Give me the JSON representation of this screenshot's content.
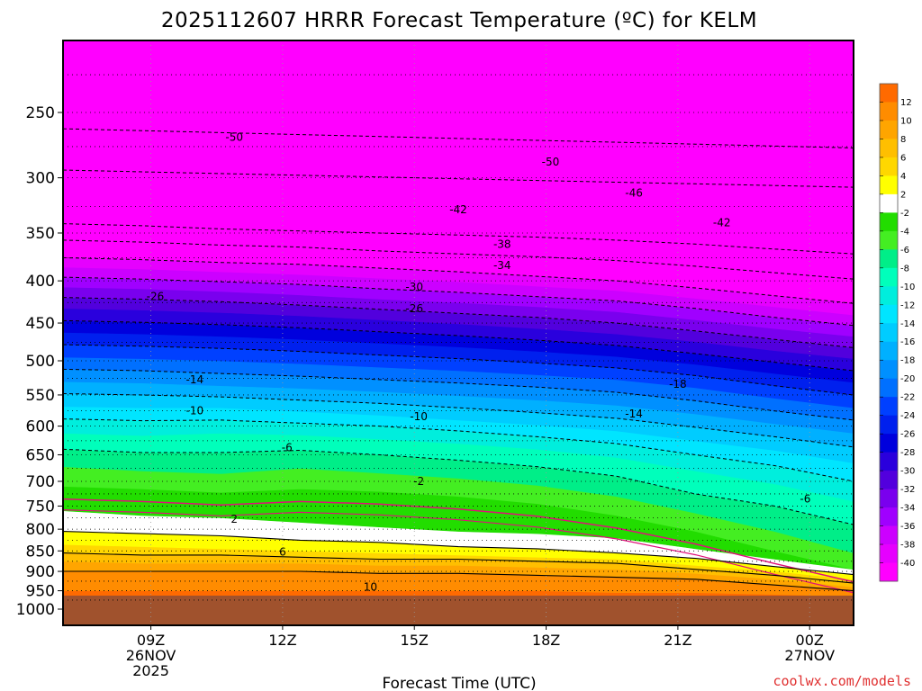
{
  "chart_data": {
    "type": "contour",
    "title": "2025112607 HRRR Forecast Temperature (ºC) for KELM",
    "xlabel": "Forecast Time (UTC)",
    "ylabel": "",
    "credit": "coolwx.com/models",
    "x_ticks": [
      {
        "hour": 9,
        "lines": [
          "09Z",
          "26NOV",
          "2025"
        ]
      },
      {
        "hour": 12,
        "lines": [
          "12Z"
        ]
      },
      {
        "hour": 15,
        "lines": [
          "15Z"
        ]
      },
      {
        "hour": 18,
        "lines": [
          "18Z"
        ]
      },
      {
        "hour": 21,
        "lines": [
          "21Z"
        ]
      },
      {
        "hour": 24,
        "lines": [
          "00Z",
          "27NOV"
        ]
      }
    ],
    "xlim": [
      7,
      25
    ],
    "y_scale": "log",
    "ylim": [
      1050,
      200
    ],
    "y_ticks": [
      250,
      300,
      350,
      400,
      450,
      500,
      550,
      600,
      650,
      700,
      750,
      800,
      850,
      900,
      950,
      1000
    ],
    "dotted_levels": [
      225,
      250,
      275,
      300,
      325,
      350,
      375,
      400,
      425,
      450,
      475,
      500,
      525,
      550,
      575,
      600,
      625,
      650,
      675,
      700,
      725,
      750,
      775,
      800,
      825,
      850,
      875,
      900,
      925,
      950,
      975
    ],
    "surface_pressure": 966,
    "colorbar": {
      "labels": [
        "12",
        "10",
        "8",
        "6",
        "4",
        "2",
        "-2",
        "-4",
        "-6",
        "-8",
        "-10",
        "-12",
        "-14",
        "-16",
        "-18",
        "-20",
        "-22",
        "-24",
        "-26",
        "-28",
        "-30",
        "-32",
        "-34",
        "-36",
        "-38",
        "-40"
      ],
      "colors": [
        "#ff6a00",
        "#ff8c00",
        "#ffa500",
        "#ffbf00",
        "#ffd700",
        "#ffff00",
        "#ffffff",
        "#22dd00",
        "#44ee22",
        "#00ee88",
        "#00ffbb",
        "#00eedd",
        "#00e5ff",
        "#00ccff",
        "#00b0ff",
        "#0090ff",
        "#0070ff",
        "#0040ff",
        "#0020ee",
        "#0000dd",
        "#2a00dd",
        "#5200dd",
        "#7a00ee",
        "#a000ff",
        "#cc00ff",
        "#e600ff",
        "#ff00ff"
      ]
    },
    "shading_levels": [
      [
        1000,
        950,
        900,
        875,
        855,
        835,
        805,
        760
      ],
      [
        1000,
        950,
        900,
        880,
        860,
        840,
        810,
        770
      ],
      [
        1000,
        950,
        900,
        880,
        860,
        845,
        815,
        775
      ],
      [
        1000,
        950,
        900,
        880,
        865,
        850,
        825,
        785
      ],
      [
        1000,
        950,
        905,
        885,
        870,
        855,
        830,
        795
      ],
      [
        1000,
        950,
        905,
        885,
        870,
        860,
        840,
        805
      ],
      [
        1000,
        950,
        910,
        890,
        875,
        865,
        845,
        810
      ],
      [
        1000,
        955,
        915,
        895,
        880,
        870,
        855,
        820
      ],
      [
        1000,
        955,
        920,
        905,
        895,
        885,
        868,
        845
      ],
      [
        1000,
        960,
        935,
        920,
        910,
        900,
        888,
        870
      ],
      [
        1000,
        965,
        950,
        940,
        930,
        920,
        908,
        895
      ]
    ],
    "cold_levels": [
      [
        710,
        672,
        640,
        612,
        588,
        568,
        548,
        530,
        512,
        495,
        478,
        462,
        447,
        432,
        419,
        407,
        396,
        385,
        375,
        365,
        357,
        348,
        341
      ],
      [
        715,
        680,
        646,
        616,
        591,
        570,
        550,
        532,
        514,
        497,
        480,
        464,
        449,
        434,
        421,
        409,
        398,
        387,
        377,
        367,
        359,
        350,
        343
      ],
      [
        722,
        685,
        646,
        612,
        590,
        570,
        553,
        536,
        518,
        500,
        483,
        467,
        452,
        437,
        424,
        412,
        401,
        390,
        380,
        370,
        362,
        353,
        346
      ],
      [
        715,
        675,
        642,
        615,
        595,
        576,
        558,
        540,
        522,
        504,
        487,
        471,
        456,
        441,
        428,
        416,
        404,
        393,
        382,
        372,
        364,
        355,
        348
      ],
      [
        720,
        684,
        650,
        622,
        600,
        582,
        563,
        545,
        527,
        509,
        492,
        476,
        461,
        446,
        433,
        421,
        409,
        397,
        386,
        376,
        368,
        358,
        350
      ],
      [
        730,
        694,
        660,
        630,
        608,
        590,
        570,
        551,
        532,
        514,
        497,
        481,
        466,
        451,
        438,
        425,
        413,
        401,
        390,
        380,
        371,
        361,
        352
      ],
      [
        745,
        708,
        672,
        640,
        618,
        598,
        578,
        558,
        538,
        520,
        503,
        487,
        472,
        457,
        443,
        430,
        418,
        406,
        395,
        384,
        374,
        364,
        354
      ],
      [
        770,
        730,
        690,
        655,
        630,
        608,
        587,
        566,
        546,
        527,
        510,
        494,
        479,
        464,
        450,
        436,
        423,
        411,
        400,
        389,
        378,
        367,
        357
      ],
      [
        805,
        765,
        725,
        680,
        650,
        625,
        602,
        580,
        559,
        539,
        521,
        505,
        490,
        474,
        460,
        446,
        432,
        420,
        408,
        396,
        384,
        372,
        361
      ],
      [
        850,
        805,
        750,
        705,
        670,
        642,
        618,
        596,
        575,
        555,
        536,
        518,
        502,
        486,
        471,
        457,
        443,
        430,
        417,
        404,
        391,
        378,
        366
      ],
      [
        895,
        855,
        790,
        740,
        700,
        665,
        636,
        612,
        590,
        570,
        550,
        531,
        514,
        497,
        482,
        467,
        453,
        440,
        426,
        412,
        398,
        384,
        371
      ]
    ],
    "contour_labels": [
      {
        "text": "-50",
        "hour": 10.9,
        "p": 268
      },
      {
        "text": "-50",
        "hour": 18.1,
        "p": 287
      },
      {
        "text": "-46",
        "hour": 20.0,
        "p": 313
      },
      {
        "text": "-42",
        "hour": 16.0,
        "p": 328
      },
      {
        "text": "-42",
        "hour": 22.0,
        "p": 340
      },
      {
        "text": "-38",
        "hour": 17.0,
        "p": 361
      },
      {
        "text": "-34",
        "hour": 17.0,
        "p": 383
      },
      {
        "text": "-30",
        "hour": 15.0,
        "p": 407
      },
      {
        "text": "-26",
        "hour": 9.1,
        "p": 418
      },
      {
        "text": "-26",
        "hour": 15.0,
        "p": 432
      },
      {
        "text": "-18",
        "hour": 21.0,
        "p": 534
      },
      {
        "text": "-14",
        "hour": 10.0,
        "p": 527
      },
      {
        "text": "-14",
        "hour": 20.0,
        "p": 580
      },
      {
        "text": "-10",
        "hour": 10.0,
        "p": 575
      },
      {
        "text": "-10",
        "hour": 15.1,
        "p": 584
      },
      {
        "text": "-6",
        "hour": 12.1,
        "p": 637
      },
      {
        "text": "-6",
        "hour": 23.9,
        "p": 735
      },
      {
        "text": "-2",
        "hour": 15.1,
        "p": 700
      },
      {
        "text": "2",
        "hour": 10.9,
        "p": 778
      },
      {
        "text": "6",
        "hour": 12.0,
        "p": 853
      },
      {
        "text": "10",
        "hour": 14.0,
        "p": 940
      }
    ]
  }
}
